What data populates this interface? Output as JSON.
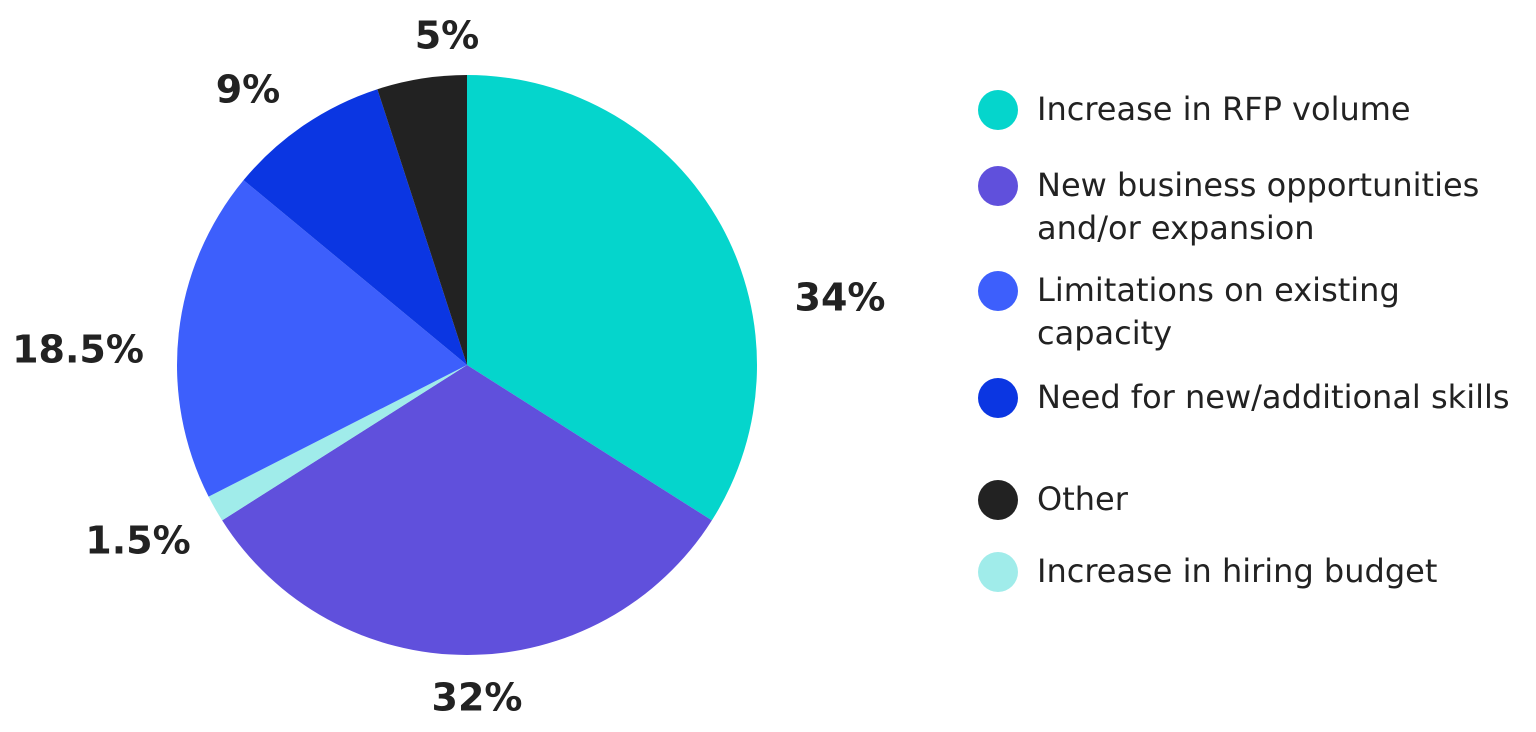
{
  "chart_data": {
    "type": "pie",
    "categories": [
      "Increase in RFP volume",
      "New business opportunities and/or expansion",
      "Increase in hiring budget",
      "Limitations on existing capacity",
      "Need for new/additional skills",
      "Other"
    ],
    "values": [
      34,
      32,
      1.5,
      18.5,
      9,
      5
    ],
    "value_labels": [
      "34%",
      "32%",
      "1.5%",
      "18.5%",
      "9%",
      "5%"
    ],
    "colors": [
      "#05d5cc",
      "#6050dc",
      "#a0ecea",
      "#3d5ffc",
      "#0b36e2",
      "#222222"
    ],
    "legend_order": [
      0,
      1,
      3,
      4,
      5,
      2
    ],
    "legend": "right"
  }
}
